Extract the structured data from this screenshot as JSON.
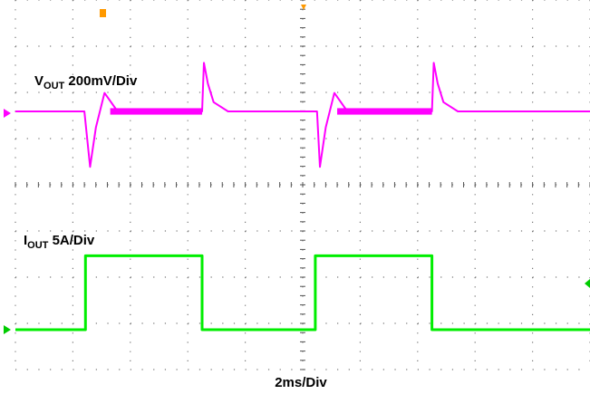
{
  "chart_data": {
    "type": "line",
    "title": "",
    "xlabel": "2ms/Div",
    "grid": true,
    "x_divisions": 10,
    "y_divisions": 8,
    "time_per_div_ms": 2,
    "series": [
      {
        "name_main": "V",
        "name_sub": "OUT",
        "name_suffix": " 200mV/Div",
        "scale_per_div": 0.2,
        "unit": "V",
        "color": "#ff00ff",
        "x": [
          0,
          1.2,
          1.3,
          1.4,
          1.55,
          1.75,
          1.9,
          3.25,
          3.28,
          3.35,
          3.45,
          3.7,
          4.0,
          5.25,
          5.3,
          5.4,
          5.55,
          5.75,
          5.95,
          7.25,
          7.28,
          7.35,
          7.45,
          7.7,
          8.0,
          10
        ],
        "y": [
          0,
          0,
          -1.2,
          -0.35,
          0.4,
          0.05,
          0,
          0,
          1.05,
          0.6,
          0.2,
          0,
          0,
          0,
          -1.2,
          -0.35,
          0.4,
          0.05,
          0,
          0,
          1.05,
          0.6,
          0.2,
          0,
          0,
          0
        ]
      },
      {
        "name_main": "I",
        "name_sub": "OUT",
        "name_suffix": " 5A/Div",
        "scale_per_div": 5,
        "unit": "A",
        "color": "#00ee00",
        "x": [
          0,
          1.22,
          1.22,
          3.25,
          3.25,
          5.22,
          5.22,
          7.25,
          7.25,
          10
        ],
        "y": [
          0,
          0,
          1.6,
          1.6,
          0,
          0,
          1.6,
          1.6,
          0,
          0
        ]
      }
    ]
  }
}
